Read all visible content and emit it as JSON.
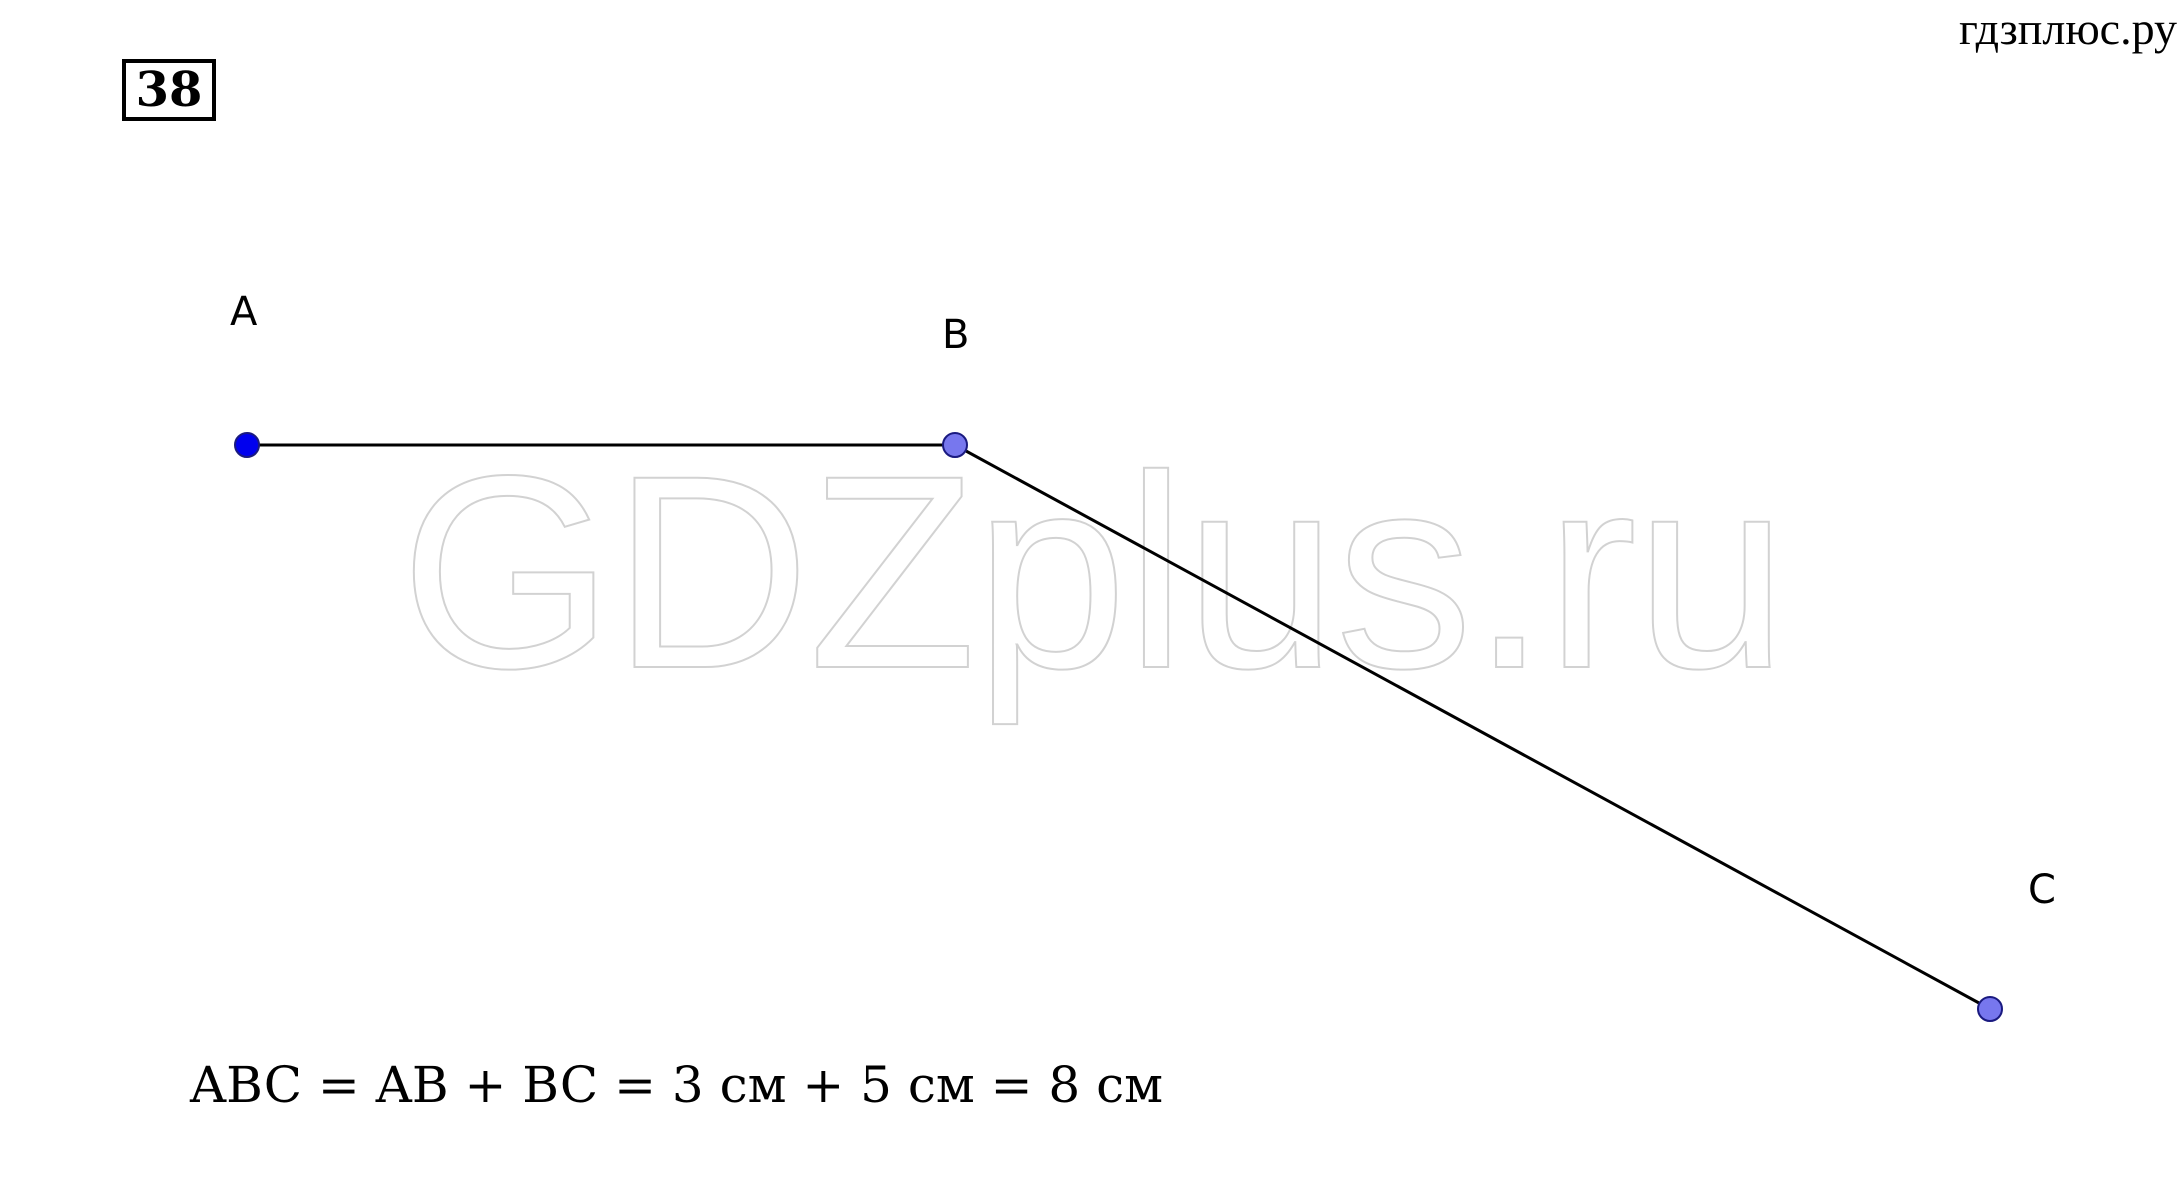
{
  "header": {
    "problem_number": "38",
    "site": "гдзплюс.ру"
  },
  "watermark": "GDZplus.ru",
  "points": {
    "A": {
      "label": "A",
      "fill": "#0000ee"
    },
    "B": {
      "label": "B",
      "fill": "#7777ee"
    },
    "C": {
      "label": "C",
      "fill": "#7777ee"
    }
  },
  "equation": "ABC = AB + BC = 3 см + 5 см = 8 см",
  "colors": {
    "segment": "#000000",
    "point_stroke": "#1a1a80"
  }
}
